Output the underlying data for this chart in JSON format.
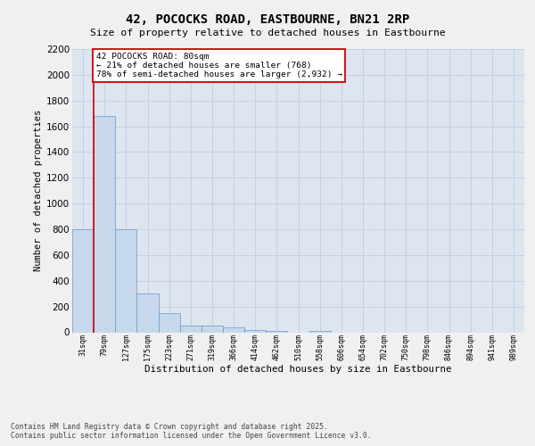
{
  "title_line1": "42, POCOCKS ROAD, EASTBOURNE, BN21 2RP",
  "title_line2": "Size of property relative to detached houses in Eastbourne",
  "xlabel": "Distribution of detached houses by size in Eastbourne",
  "ylabel": "Number of detached properties",
  "categories": [
    "31sqm",
    "79sqm",
    "127sqm",
    "175sqm",
    "223sqm",
    "271sqm",
    "319sqm",
    "366sqm",
    "414sqm",
    "462sqm",
    "510sqm",
    "558sqm",
    "606sqm",
    "654sqm",
    "702sqm",
    "750sqm",
    "798sqm",
    "846sqm",
    "894sqm",
    "941sqm",
    "989sqm"
  ],
  "values": [
    800,
    1680,
    800,
    300,
    150,
    50,
    50,
    40,
    20,
    10,
    0,
    10,
    0,
    0,
    0,
    0,
    0,
    0,
    0,
    0,
    0
  ],
  "bar_color": "#c8d8ec",
  "bar_edge_color": "#6699cc",
  "grid_color": "#c0cce0",
  "background_color": "#dde5f0",
  "bg_outer_color": "#f0f0f0",
  "ylim": [
    0,
    2200
  ],
  "yticks": [
    0,
    200,
    400,
    600,
    800,
    1000,
    1200,
    1400,
    1600,
    1800,
    2000,
    2200
  ],
  "property_line_color": "#cc0000",
  "annotation_text": "42 POCOCKS ROAD: 80sqm\n← 21% of detached houses are smaller (768)\n78% of semi-detached houses are larger (2,932) →",
  "annotation_edge_color": "#cc0000",
  "footnote": "Contains HM Land Registry data © Crown copyright and database right 2025.\nContains public sector information licensed under the Open Government Licence v3.0."
}
